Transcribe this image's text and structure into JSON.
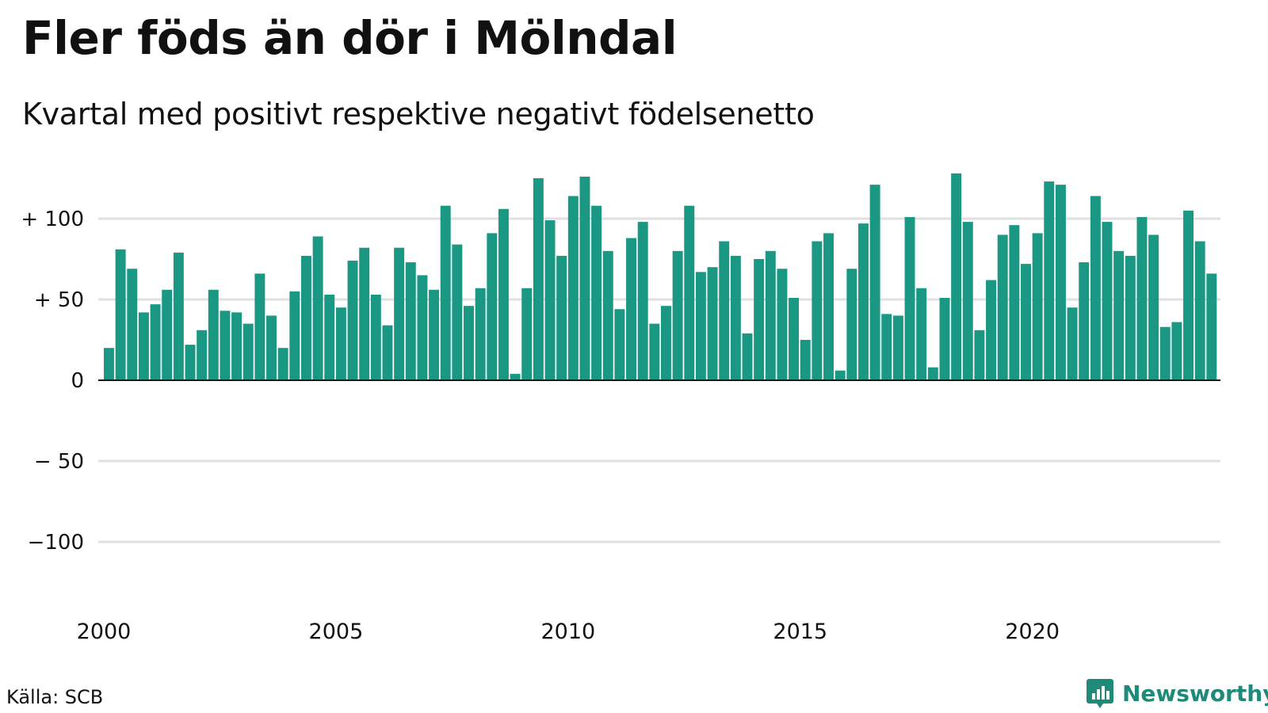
{
  "header": {
    "title": "Fler föds än dör i Mölndal",
    "subtitle": "Kvartal med positivt respektive negativt födelsenetto"
  },
  "footer": {
    "source": "Källa: SCB",
    "brand": "Newsworthy"
  },
  "colors": {
    "bar": "#1a9883",
    "grid": "#e0e0e0",
    "axis": "#111111",
    "brand": "#1f8a7a"
  },
  "chart_data": {
    "type": "bar",
    "title": "Fler föds än dör i Mölndal",
    "subtitle": "Kvartal med positivt respektive negativt födelsenetto",
    "xlabel": "",
    "ylabel": "",
    "ylim": [
      -135,
      130
    ],
    "y_ticks": [
      {
        "value": 100,
        "label": "+ 100"
      },
      {
        "value": 50,
        "label": "+  50"
      },
      {
        "value": 0,
        "label": "0"
      },
      {
        "value": -50,
        "label": "− 50"
      },
      {
        "value": -100,
        "label": "−100"
      }
    ],
    "x_ticks": [
      "2000",
      "2005",
      "2010",
      "2015",
      "2020"
    ],
    "start_year": 2000,
    "frequency": "quarterly",
    "grid": true,
    "legend": "none",
    "values": [
      20,
      81,
      69,
      42,
      47,
      56,
      79,
      22,
      31,
      56,
      43,
      42,
      35,
      66,
      40,
      20,
      55,
      77,
      89,
      53,
      45,
      74,
      82,
      53,
      34,
      82,
      73,
      65,
      56,
      108,
      84,
      46,
      57,
      91,
      106,
      4,
      57,
      125,
      99,
      77,
      114,
      126,
      108,
      80,
      44,
      88,
      98,
      35,
      46,
      80,
      108,
      67,
      70,
      86,
      77,
      29,
      75,
      80,
      69,
      51,
      25,
      86,
      91,
      6,
      69,
      97,
      121,
      41,
      40,
      101,
      57,
      8,
      51,
      128,
      98,
      31,
      62,
      90,
      96,
      72,
      91,
      123,
      121,
      45,
      73,
      114,
      98,
      80,
      77,
      101,
      90,
      33,
      36,
      105,
      86,
      66
    ]
  }
}
